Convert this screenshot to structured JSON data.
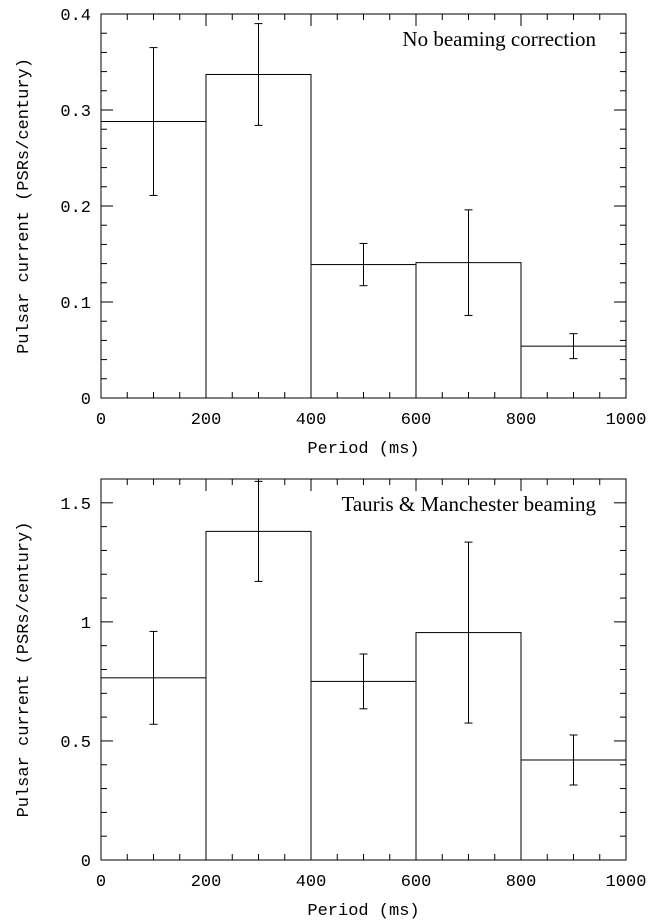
{
  "chart_data": [
    {
      "type": "histogram",
      "annotation": "No beaming correction",
      "xlabel": "Period (ms)",
      "ylabel": "Pulsar current (PSRs/century)",
      "bins": [
        0,
        200,
        400,
        600,
        800,
        1000
      ],
      "values": [
        0.288,
        0.337,
        0.139,
        0.141,
        0.054
      ],
      "errors": [
        0.077,
        0.053,
        0.022,
        0.055,
        0.013
      ],
      "color": "#000000",
      "xlim": [
        0,
        1000
      ],
      "xticks": [
        0,
        200,
        400,
        600,
        800,
        1000
      ],
      "ylim": [
        0,
        0.4
      ],
      "yticks": [
        0,
        0.1,
        0.2,
        0.3,
        0.4
      ]
    },
    {
      "type": "histogram",
      "annotation": "Tauris & Manchester beaming",
      "xlabel": "Period (ms)",
      "ylabel": "Pulsar current (PSRs/century)",
      "bins": [
        0,
        200,
        400,
        600,
        800,
        1000
      ],
      "values": [
        0.765,
        1.38,
        0.75,
        0.955,
        0.42
      ],
      "errors": [
        0.195,
        0.21,
        0.115,
        0.38,
        0.105
      ],
      "color": "#000000",
      "xlim": [
        0,
        1000
      ],
      "xticks": [
        0,
        200,
        400,
        600,
        800,
        1000
      ],
      "ylim": [
        0,
        1.6
      ],
      "yticks": [
        0,
        0.5,
        1,
        1.5
      ]
    }
  ]
}
